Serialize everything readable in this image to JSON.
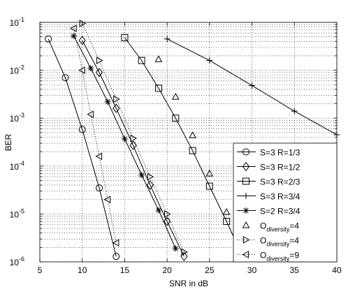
{
  "chart_data": {
    "type": "line",
    "log_y": true,
    "grid": true,
    "legend": "lower right",
    "xlabel": "SNR in dB",
    "ylabel": "BER",
    "xlim": [
      5,
      40
    ],
    "xticks": [
      5,
      10,
      15,
      20,
      25,
      30,
      35,
      40
    ],
    "ylim": [
      1e-06,
      0.1
    ],
    "yticks": [
      {
        "value": 1e-06,
        "label": "10",
        "exponent": "-6"
      },
      {
        "value": 1e-05,
        "label": "10",
        "exponent": "-5"
      },
      {
        "value": 0.0001,
        "label": "10",
        "exponent": "-4"
      },
      {
        "value": 0.001,
        "label": "10",
        "exponent": "-3"
      },
      {
        "value": 0.01,
        "label": "10",
        "exponent": "-2"
      },
      {
        "value": 0.1,
        "label": "10",
        "exponent": "-1"
      }
    ],
    "series": [
      {
        "name": {
          "text": "S=3 R=1/3"
        },
        "color": "#000000",
        "line": "solid",
        "marker": "circle",
        "x": [
          6,
          8,
          10,
          12,
          14
        ],
        "values": [
          0.045,
          0.007,
          0.00058,
          3.5e-05,
          1.3e-06
        ]
      },
      {
        "name": {
          "text": "S=3 R=1/2"
        },
        "color": "#000000",
        "line": "solid",
        "marker": "diamond",
        "x": [
          10,
          12,
          14,
          16,
          18,
          20,
          22
        ],
        "values": [
          0.042,
          0.009,
          0.0016,
          0.00027,
          4e-05,
          7e-06,
          1.3e-06
        ]
      },
      {
        "name": {
          "text": "S=3 R=2/3"
        },
        "color": "#000000",
        "line": "solid",
        "marker": "square",
        "x": [
          15,
          17,
          19,
          21,
          23,
          25,
          27,
          29
        ],
        "values": [
          0.048,
          0.016,
          0.0042,
          0.001,
          0.00021,
          3.8e-05,
          7e-06,
          1.2e-06
        ]
      },
      {
        "name": {
          "text": "S=3 R=3/4"
        },
        "color": "#000000",
        "line": "solid",
        "marker": "plus",
        "x": [
          20,
          25,
          30,
          35,
          40
        ],
        "values": [
          0.045,
          0.016,
          0.0048,
          0.0014,
          0.00045
        ]
      },
      {
        "name": {
          "text": "S=2 R=3/4"
        },
        "color": "#000000",
        "line": "solid",
        "marker": "star",
        "x": [
          9,
          11,
          13,
          15,
          17,
          19,
          21
        ],
        "values": [
          0.052,
          0.011,
          0.0022,
          0.00037,
          6.5e-05,
          1.2e-05,
          1.9e-06
        ]
      },
      {
        "name": {
          "text": "O",
          "sub": "diversity",
          "rest": "=4"
        },
        "color": "#000000",
        "line": "none",
        "marker": "triangle-up",
        "x": [
          19,
          21,
          23,
          25,
          27,
          29
        ],
        "values": [
          0.017,
          0.0028,
          0.00044,
          7e-05,
          1.1e-05,
          1.8e-06
        ]
      },
      {
        "name": {
          "text": "O",
          "sub": "diversity",
          "rest": "=4"
        },
        "color": "#000000",
        "line": "dotted",
        "marker": "triangle-right",
        "x": [
          10,
          12,
          14,
          16,
          18,
          20,
          22
        ],
        "values": [
          0.095,
          0.016,
          0.0025,
          0.00038,
          6e-05,
          1e-05,
          1.6e-06
        ]
      },
      {
        "name": {
          "text": "O",
          "sub": "diversity",
          "rest": "=9"
        },
        "color": "#000000",
        "line": "dotted",
        "marker": "triangle-left",
        "x": [
          9,
          10,
          11,
          12,
          13,
          14
        ],
        "values": [
          0.075,
          0.01,
          0.0012,
          0.00016,
          2e-05,
          2.5e-06
        ]
      }
    ]
  }
}
